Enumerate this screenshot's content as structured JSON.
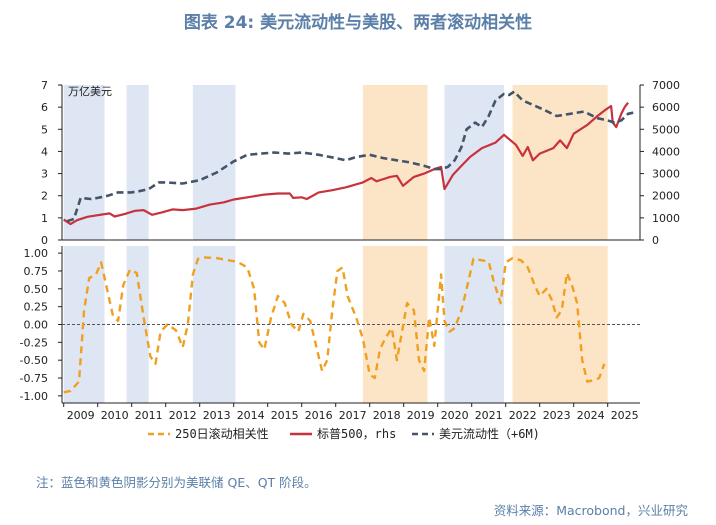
{
  "page": {
    "title": "图表 24: 美元流动性与美股、两者滚动相关性",
    "note": "注：蓝色和黄色阴影分别为美联储 QE、QT 阶段。",
    "source": "资料来源：Macrobond，兴业研究"
  },
  "colors": {
    "sp500": "#c8323c",
    "liquidity": "#44546a",
    "corr": "#f0a020",
    "qe_shade": "#dde6f2",
    "qt_shade": "#fce5c6"
  },
  "chart_data": [
    {
      "type": "line",
      "unit_label": "万亿美元",
      "x_tick_labels": [
        "2009",
        "2010",
        "2011",
        "2012",
        "2013",
        "2014",
        "2015",
        "2016",
        "2017",
        "2018",
        "2019",
        "2020",
        "2021",
        "2022",
        "2023",
        "2024",
        "2025"
      ],
      "xlim": [
        2008.95,
        2025.95
      ],
      "ylim_left": [
        0,
        7
      ],
      "yticks_left": [
        "0",
        "1",
        "2",
        "3",
        "4",
        "5",
        "6",
        "7"
      ],
      "ylim_right": [
        0,
        7000
      ],
      "yticks_right": [
        "0",
        "1000",
        "2000",
        "3000",
        "4000",
        "5000",
        "6000",
        "7000"
      ],
      "shading": {
        "qe": [
          [
            2009.0,
            2010.2
          ],
          [
            2010.85,
            2011.5
          ],
          [
            2012.8,
            2014.05
          ],
          [
            2020.2,
            2021.95
          ]
        ],
        "qt": [
          [
            2017.8,
            2019.7
          ],
          [
            2022.2,
            2025.0
          ]
        ]
      },
      "series": [
        {
          "name": "美元流动性（+6M)",
          "axis": "left",
          "style": "dashed",
          "points": [
            [
              2009.1,
              0.85
            ],
            [
              2009.3,
              0.95
            ],
            [
              2009.5,
              1.9
            ],
            [
              2009.8,
              1.85
            ],
            [
              2010.0,
              1.9
            ],
            [
              2010.3,
              2.0
            ],
            [
              2010.6,
              2.15
            ],
            [
              2011.0,
              2.15
            ],
            [
              2011.2,
              2.2
            ],
            [
              2011.5,
              2.3
            ],
            [
              2011.8,
              2.6
            ],
            [
              2012.0,
              2.6
            ],
            [
              2012.5,
              2.55
            ],
            [
              2013.0,
              2.7
            ],
            [
              2013.5,
              3.05
            ],
            [
              2014.0,
              3.55
            ],
            [
              2014.4,
              3.85
            ],
            [
              2014.8,
              3.9
            ],
            [
              2015.2,
              3.95
            ],
            [
              2015.6,
              3.9
            ],
            [
              2016.0,
              3.95
            ],
            [
              2016.5,
              3.85
            ],
            [
              2017.0,
              3.7
            ],
            [
              2017.3,
              3.6
            ],
            [
              2017.6,
              3.75
            ],
            [
              2018.0,
              3.85
            ],
            [
              2018.4,
              3.7
            ],
            [
              2018.8,
              3.6
            ],
            [
              2019.2,
              3.5
            ],
            [
              2019.6,
              3.35
            ],
            [
              2019.9,
              3.2
            ],
            [
              2020.1,
              3.2
            ],
            [
              2020.3,
              3.3
            ],
            [
              2020.5,
              3.6
            ],
            [
              2020.7,
              4.2
            ],
            [
              2020.85,
              5.0
            ],
            [
              2021.1,
              5.3
            ],
            [
              2021.3,
              5.1
            ],
            [
              2021.5,
              5.6
            ],
            [
              2021.7,
              6.3
            ],
            [
              2021.95,
              6.6
            ],
            [
              2022.1,
              6.55
            ],
            [
              2022.25,
              6.7
            ],
            [
              2022.5,
              6.3
            ],
            [
              2022.8,
              6.1
            ],
            [
              2023.1,
              5.9
            ],
            [
              2023.5,
              5.6
            ],
            [
              2023.9,
              5.7
            ],
            [
              2024.3,
              5.8
            ],
            [
              2024.7,
              5.5
            ],
            [
              2025.0,
              5.4
            ],
            [
              2025.2,
              5.3
            ],
            [
              2025.4,
              5.4
            ],
            [
              2025.6,
              5.7
            ],
            [
              2025.75,
              5.75
            ]
          ]
        },
        {
          "name": "标普500，rhs",
          "axis": "right",
          "style": "solid",
          "points": [
            [
              2009.0,
              920
            ],
            [
              2009.2,
              720
            ],
            [
              2009.4,
              900
            ],
            [
              2009.7,
              1050
            ],
            [
              2010.0,
              1120
            ],
            [
              2010.35,
              1200
            ],
            [
              2010.5,
              1060
            ],
            [
              2010.8,
              1180
            ],
            [
              2011.1,
              1320
            ],
            [
              2011.35,
              1350
            ],
            [
              2011.6,
              1140
            ],
            [
              2011.9,
              1250
            ],
            [
              2012.2,
              1380
            ],
            [
              2012.5,
              1350
            ],
            [
              2012.9,
              1420
            ],
            [
              2013.3,
              1600
            ],
            [
              2013.7,
              1700
            ],
            [
              2014.0,
              1830
            ],
            [
              2014.5,
              1950
            ],
            [
              2014.9,
              2050
            ],
            [
              2015.3,
              2100
            ],
            [
              2015.65,
              2100
            ],
            [
              2015.75,
              1900
            ],
            [
              2016.0,
              1930
            ],
            [
              2016.15,
              1850
            ],
            [
              2016.5,
              2150
            ],
            [
              2016.9,
              2250
            ],
            [
              2017.3,
              2380
            ],
            [
              2017.8,
              2600
            ],
            [
              2018.05,
              2800
            ],
            [
              2018.2,
              2650
            ],
            [
              2018.6,
              2850
            ],
            [
              2018.8,
              2900
            ],
            [
              2018.98,
              2450
            ],
            [
              2019.3,
              2850
            ],
            [
              2019.6,
              3000
            ],
            [
              2019.9,
              3200
            ],
            [
              2020.1,
              3300
            ],
            [
              2020.2,
              2300
            ],
            [
              2020.45,
              2950
            ],
            [
              2020.7,
              3350
            ],
            [
              2020.95,
              3750
            ],
            [
              2021.3,
              4150
            ],
            [
              2021.7,
              4400
            ],
            [
              2021.95,
              4750
            ],
            [
              2022.3,
              4300
            ],
            [
              2022.5,
              3800
            ],
            [
              2022.65,
              4200
            ],
            [
              2022.8,
              3600
            ],
            [
              2023.0,
              3900
            ],
            [
              2023.4,
              4150
            ],
            [
              2023.6,
              4500
            ],
            [
              2023.8,
              4150
            ],
            [
              2024.0,
              4800
            ],
            [
              2024.4,
              5200
            ],
            [
              2024.7,
              5600
            ],
            [
              2024.95,
              5900
            ],
            [
              2025.1,
              6050
            ],
            [
              2025.15,
              5300
            ],
            [
              2025.25,
              5100
            ],
            [
              2025.4,
              5700
            ],
            [
              2025.5,
              6000
            ],
            [
              2025.6,
              6200
            ]
          ]
        }
      ]
    },
    {
      "type": "line",
      "xlim": [
        2008.95,
        2025.95
      ],
      "ylim": [
        -1.1,
        1.1
      ],
      "yticks": [
        "1.00",
        "0.75",
        "0.50",
        "0.25",
        "0.00",
        "-0.25",
        "-0.50",
        "-0.75",
        "-1.00"
      ],
      "zero_line": "dotted",
      "series": [
        {
          "name": "250日滚动相关性",
          "style": "dashed",
          "points": [
            [
              2009.0,
              -0.95
            ],
            [
              2009.2,
              -0.93
            ],
            [
              2009.45,
              -0.8
            ],
            [
              2009.6,
              0.2
            ],
            [
              2009.75,
              0.65
            ],
            [
              2009.95,
              0.7
            ],
            [
              2010.1,
              0.87
            ],
            [
              2010.25,
              0.55
            ],
            [
              2010.45,
              0.12
            ],
            [
              2010.6,
              0.05
            ],
            [
              2010.75,
              0.55
            ],
            [
              2010.95,
              0.77
            ],
            [
              2011.15,
              0.72
            ],
            [
              2011.35,
              0.1
            ],
            [
              2011.55,
              -0.45
            ],
            [
              2011.7,
              -0.55
            ],
            [
              2011.85,
              -0.1
            ],
            [
              2012.05,
              0.0
            ],
            [
              2012.3,
              -0.08
            ],
            [
              2012.5,
              -0.32
            ],
            [
              2012.65,
              0.0
            ],
            [
              2012.8,
              0.7
            ],
            [
              2012.95,
              0.92
            ],
            [
              2013.15,
              0.94
            ],
            [
              2013.5,
              0.93
            ],
            [
              2013.85,
              0.9
            ],
            [
              2014.1,
              0.88
            ],
            [
              2014.4,
              0.8
            ],
            [
              2014.6,
              0.5
            ],
            [
              2014.75,
              -0.25
            ],
            [
              2014.9,
              -0.35
            ],
            [
              2015.1,
              0.1
            ],
            [
              2015.3,
              0.4
            ],
            [
              2015.5,
              0.3
            ],
            [
              2015.7,
              0.0
            ],
            [
              2015.9,
              -0.1
            ],
            [
              2016.05,
              0.15
            ],
            [
              2016.25,
              0.05
            ],
            [
              2016.45,
              -0.35
            ],
            [
              2016.6,
              -0.65
            ],
            [
              2016.75,
              -0.5
            ],
            [
              2016.9,
              0.2
            ],
            [
              2017.05,
              0.75
            ],
            [
              2017.2,
              0.8
            ],
            [
              2017.35,
              0.4
            ],
            [
              2017.6,
              0.1
            ],
            [
              2017.8,
              -0.2
            ],
            [
              2018.0,
              -0.7
            ],
            [
              2018.15,
              -0.75
            ],
            [
              2018.3,
              -0.35
            ],
            [
              2018.45,
              -0.2
            ],
            [
              2018.65,
              -0.05
            ],
            [
              2018.8,
              -0.5
            ],
            [
              2018.95,
              -0.1
            ],
            [
              2019.1,
              0.3
            ],
            [
              2019.3,
              0.2
            ],
            [
              2019.45,
              -0.5
            ],
            [
              2019.6,
              -0.65
            ],
            [
              2019.75,
              0.1
            ],
            [
              2019.9,
              -0.3
            ],
            [
              2020.1,
              0.7
            ],
            [
              2020.2,
              0.05
            ],
            [
              2020.35,
              -0.1
            ],
            [
              2020.5,
              -0.05
            ],
            [
              2020.7,
              0.2
            ],
            [
              2020.9,
              0.6
            ],
            [
              2021.05,
              0.92
            ],
            [
              2021.3,
              0.9
            ],
            [
              2021.5,
              0.88
            ],
            [
              2021.65,
              0.6
            ],
            [
              2021.85,
              0.3
            ],
            [
              2022.0,
              0.87
            ],
            [
              2022.2,
              0.93
            ],
            [
              2022.45,
              0.9
            ],
            [
              2022.65,
              0.8
            ],
            [
              2022.85,
              0.55
            ],
            [
              2023.0,
              0.4
            ],
            [
              2023.2,
              0.5
            ],
            [
              2023.35,
              0.35
            ],
            [
              2023.5,
              0.1
            ],
            [
              2023.65,
              0.2
            ],
            [
              2023.8,
              0.72
            ],
            [
              2023.95,
              0.55
            ],
            [
              2024.1,
              0.3
            ],
            [
              2024.25,
              -0.5
            ],
            [
              2024.4,
              -0.8
            ],
            [
              2024.6,
              -0.78
            ],
            [
              2024.75,
              -0.75
            ],
            [
              2024.9,
              -0.55
            ]
          ]
        }
      ]
    }
  ]
}
